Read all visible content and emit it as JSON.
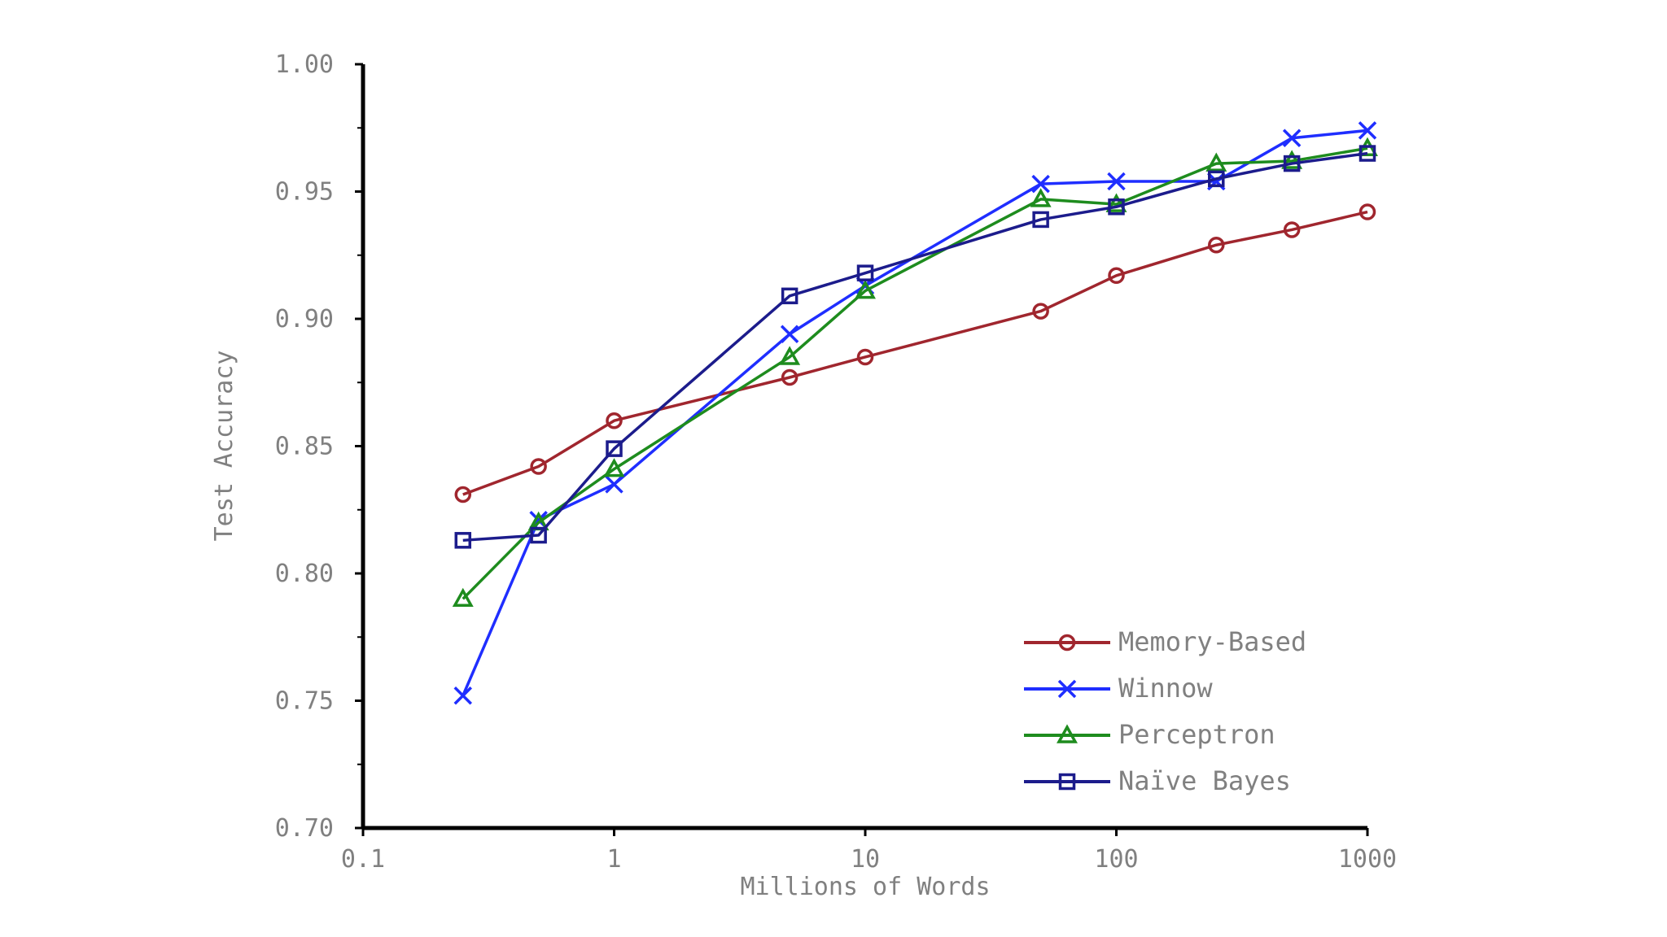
{
  "chart_data": {
    "type": "line",
    "xlabel": "Millions of Words",
    "ylabel": "Test Accuracy",
    "x_scale": "log",
    "xlim": [
      0.1,
      1000
    ],
    "ylim": [
      0.7,
      1.0
    ],
    "x_ticks": [
      "0.1",
      "1",
      "10",
      "100",
      "1000"
    ],
    "y_ticks": [
      "0.70",
      "0.75",
      "0.80",
      "0.85",
      "0.90",
      "0.95",
      "1.00"
    ],
    "grid": false,
    "legend_position": "bottom-right",
    "x": [
      0.25,
      0.5,
      1,
      5,
      10,
      50,
      100,
      250,
      500,
      1000
    ],
    "series": [
      {
        "name": "Memory-Based",
        "color": "#a0262e",
        "marker": "circle",
        "values": [
          0.831,
          0.842,
          0.86,
          0.877,
          0.885,
          0.903,
          0.917,
          0.929,
          0.935,
          0.942
        ]
      },
      {
        "name": "Winnow",
        "color": "#1f2eff",
        "marker": "x",
        "values": [
          0.752,
          0.821,
          0.835,
          0.894,
          0.913,
          0.953,
          0.954,
          0.954,
          0.971,
          0.974
        ]
      },
      {
        "name": "Perceptron",
        "color": "#1e8c1e",
        "marker": "triangle",
        "values": [
          0.79,
          0.82,
          0.841,
          0.885,
          0.911,
          0.947,
          0.945,
          0.961,
          0.962,
          0.967
        ]
      },
      {
        "name": "Naïve Bayes",
        "color": "#1c1c8c",
        "marker": "square",
        "values": [
          0.813,
          0.815,
          0.849,
          0.909,
          0.918,
          0.939,
          0.944,
          0.955,
          0.961,
          0.965
        ]
      }
    ]
  }
}
